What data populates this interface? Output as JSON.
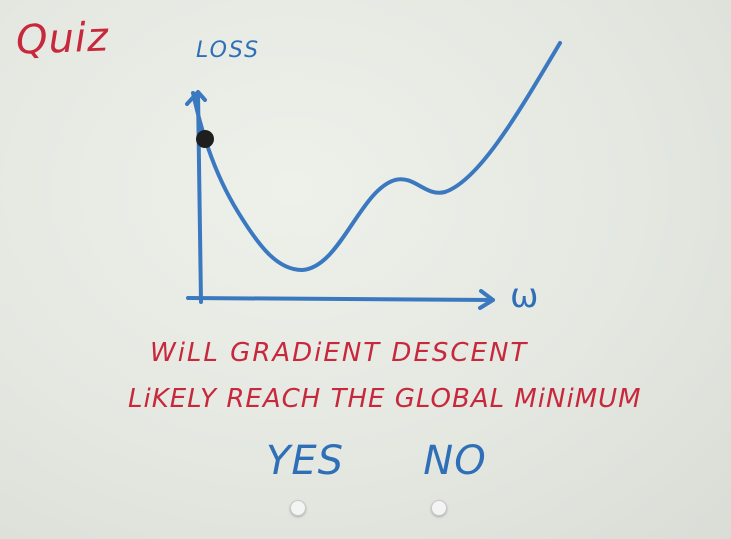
{
  "quiz": {
    "title": "Quiz",
    "question_line1": "WiLL GRADiENT DESCENT",
    "question_line2": "LiKELY REACH THE GLOBAL MiNiMUM",
    "options": [
      {
        "label": "YES",
        "selected": false
      },
      {
        "label": "NO",
        "selected": false
      }
    ]
  },
  "chart_data": {
    "type": "line",
    "ylabel": "LOSS",
    "xlabel": "ω",
    "marker": "current point on loss curve",
    "colors": {
      "curve": "#3a78c0",
      "axes": "#3a78c0",
      "point": "#1e1e1e",
      "text_red": "#c8283c",
      "text_blue": "#2f6fb8"
    }
  }
}
